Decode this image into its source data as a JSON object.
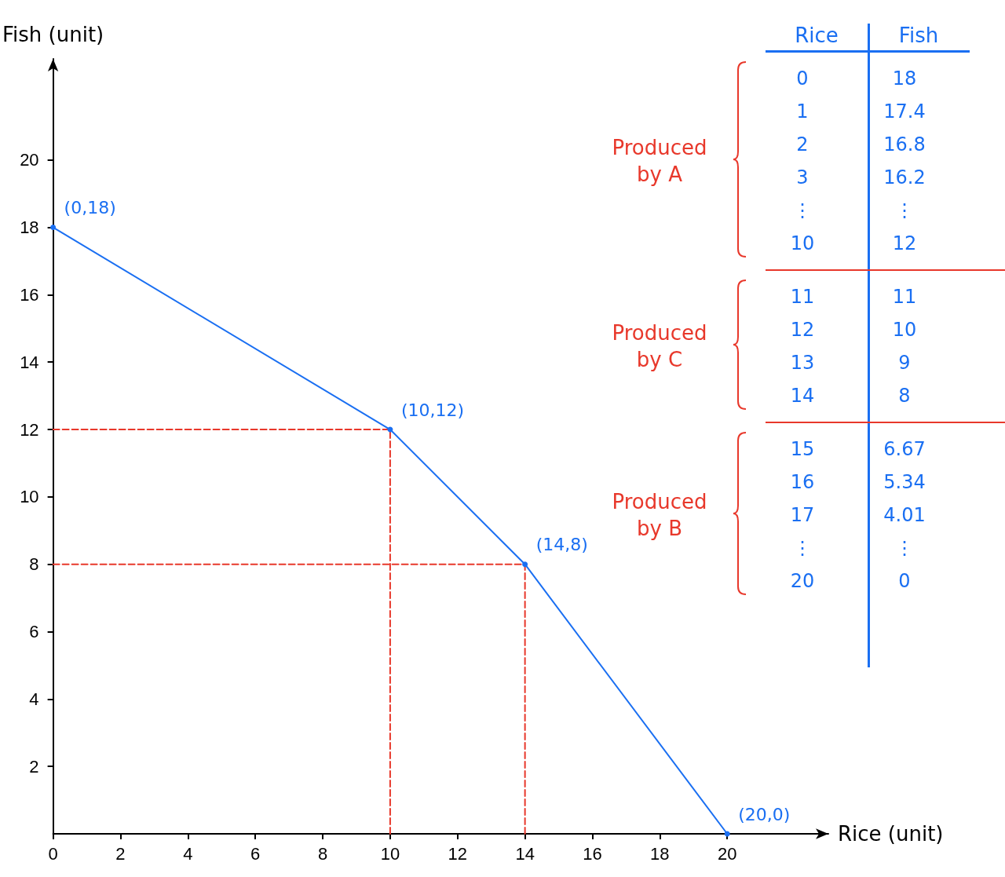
{
  "chart_data": [
    {
      "type": "line",
      "xlabel": "Rice (unit)",
      "ylabel": "Fish (unit)",
      "xlim": [
        0,
        23
      ],
      "ylim": [
        0,
        23
      ],
      "xticks": [
        0,
        2,
        4,
        6,
        8,
        10,
        12,
        14,
        16,
        18,
        20
      ],
      "yticks": [
        2,
        4,
        6,
        8,
        10,
        12,
        14,
        16,
        18,
        20
      ],
      "grid": false,
      "series": [
        {
          "x": [
            0,
            10,
            14,
            20
          ],
          "values": [
            18,
            12,
            8,
            0
          ],
          "color": "#1a6ff2",
          "marker": "circle",
          "line_style": "solid"
        },
        {
          "x": [
            0,
            10
          ],
          "values": [
            12,
            12
          ],
          "color": "#e8382b",
          "marker": "none",
          "line_style": "dashed"
        },
        {
          "x": [
            10,
            10
          ],
          "values": [
            0,
            12
          ],
          "color": "#e8382b",
          "marker": "none",
          "line_style": "dashed"
        },
        {
          "x": [
            0,
            14
          ],
          "values": [
            8,
            8
          ],
          "color": "#e8382b",
          "marker": "none",
          "line_style": "dashed"
        },
        {
          "x": [
            14,
            14
          ],
          "values": [
            0,
            8
          ],
          "color": "#e8382b",
          "marker": "none",
          "line_style": "dashed"
        }
      ],
      "annotations": [
        {
          "text": "(0,18)",
          "x": 0,
          "y": 18
        },
        {
          "text": "(10,12)",
          "x": 10,
          "y": 12
        },
        {
          "text": "(14,8)",
          "x": 14,
          "y": 8
        },
        {
          "text": "(20,0)",
          "x": 20,
          "y": 0
        }
      ]
    },
    {
      "type": "other",
      "annotations": [
        "Rice",
        "Fish",
        "Produced by A",
        "0",
        "18",
        "1",
        "17.4",
        "2",
        "16.8",
        "3",
        "16.2",
        "⋮",
        "⋮",
        "10",
        "12",
        "Produced by C",
        "11",
        "11",
        "12",
        "10",
        "13",
        "9",
        "14",
        "8",
        "Produced by B",
        "15",
        "6.67",
        "16",
        "5.34",
        "17",
        "4.01",
        "⋮",
        "⋮",
        "20",
        "0"
      ]
    }
  ]
}
